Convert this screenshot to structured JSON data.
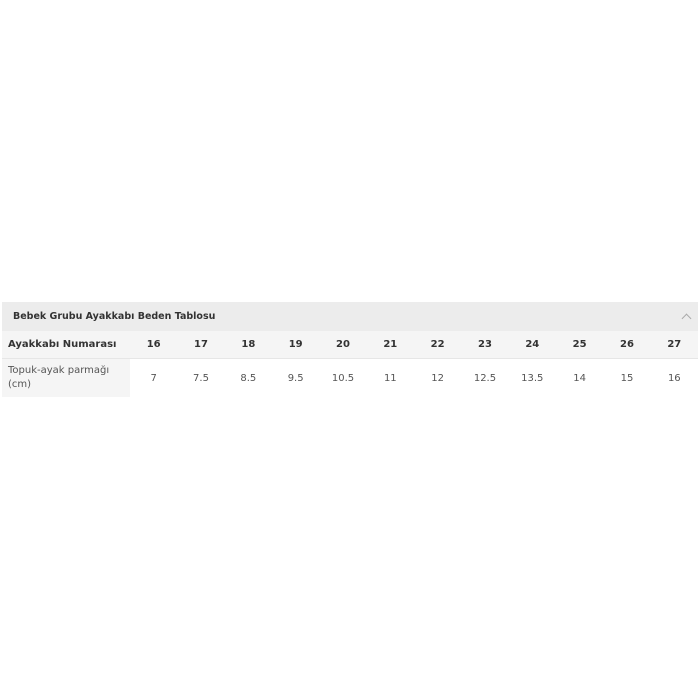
{
  "accordion": {
    "title": "Bebek Grubu Ayakkabı Beden Tablosu",
    "expand_icon": "chevron-up-icon"
  },
  "table": {
    "row_labels": [
      "Ayakkabı Numarası",
      "Topuk-ayak parmağı (cm)"
    ],
    "sizes": [
      "16",
      "17",
      "18",
      "19",
      "20",
      "21",
      "22",
      "23",
      "24",
      "25",
      "26",
      "27"
    ],
    "lengths_cm": [
      "7",
      "7.5",
      "8.5",
      "9.5",
      "10.5",
      "11",
      "12",
      "12.5",
      "13.5",
      "14",
      "15",
      "16"
    ]
  }
}
